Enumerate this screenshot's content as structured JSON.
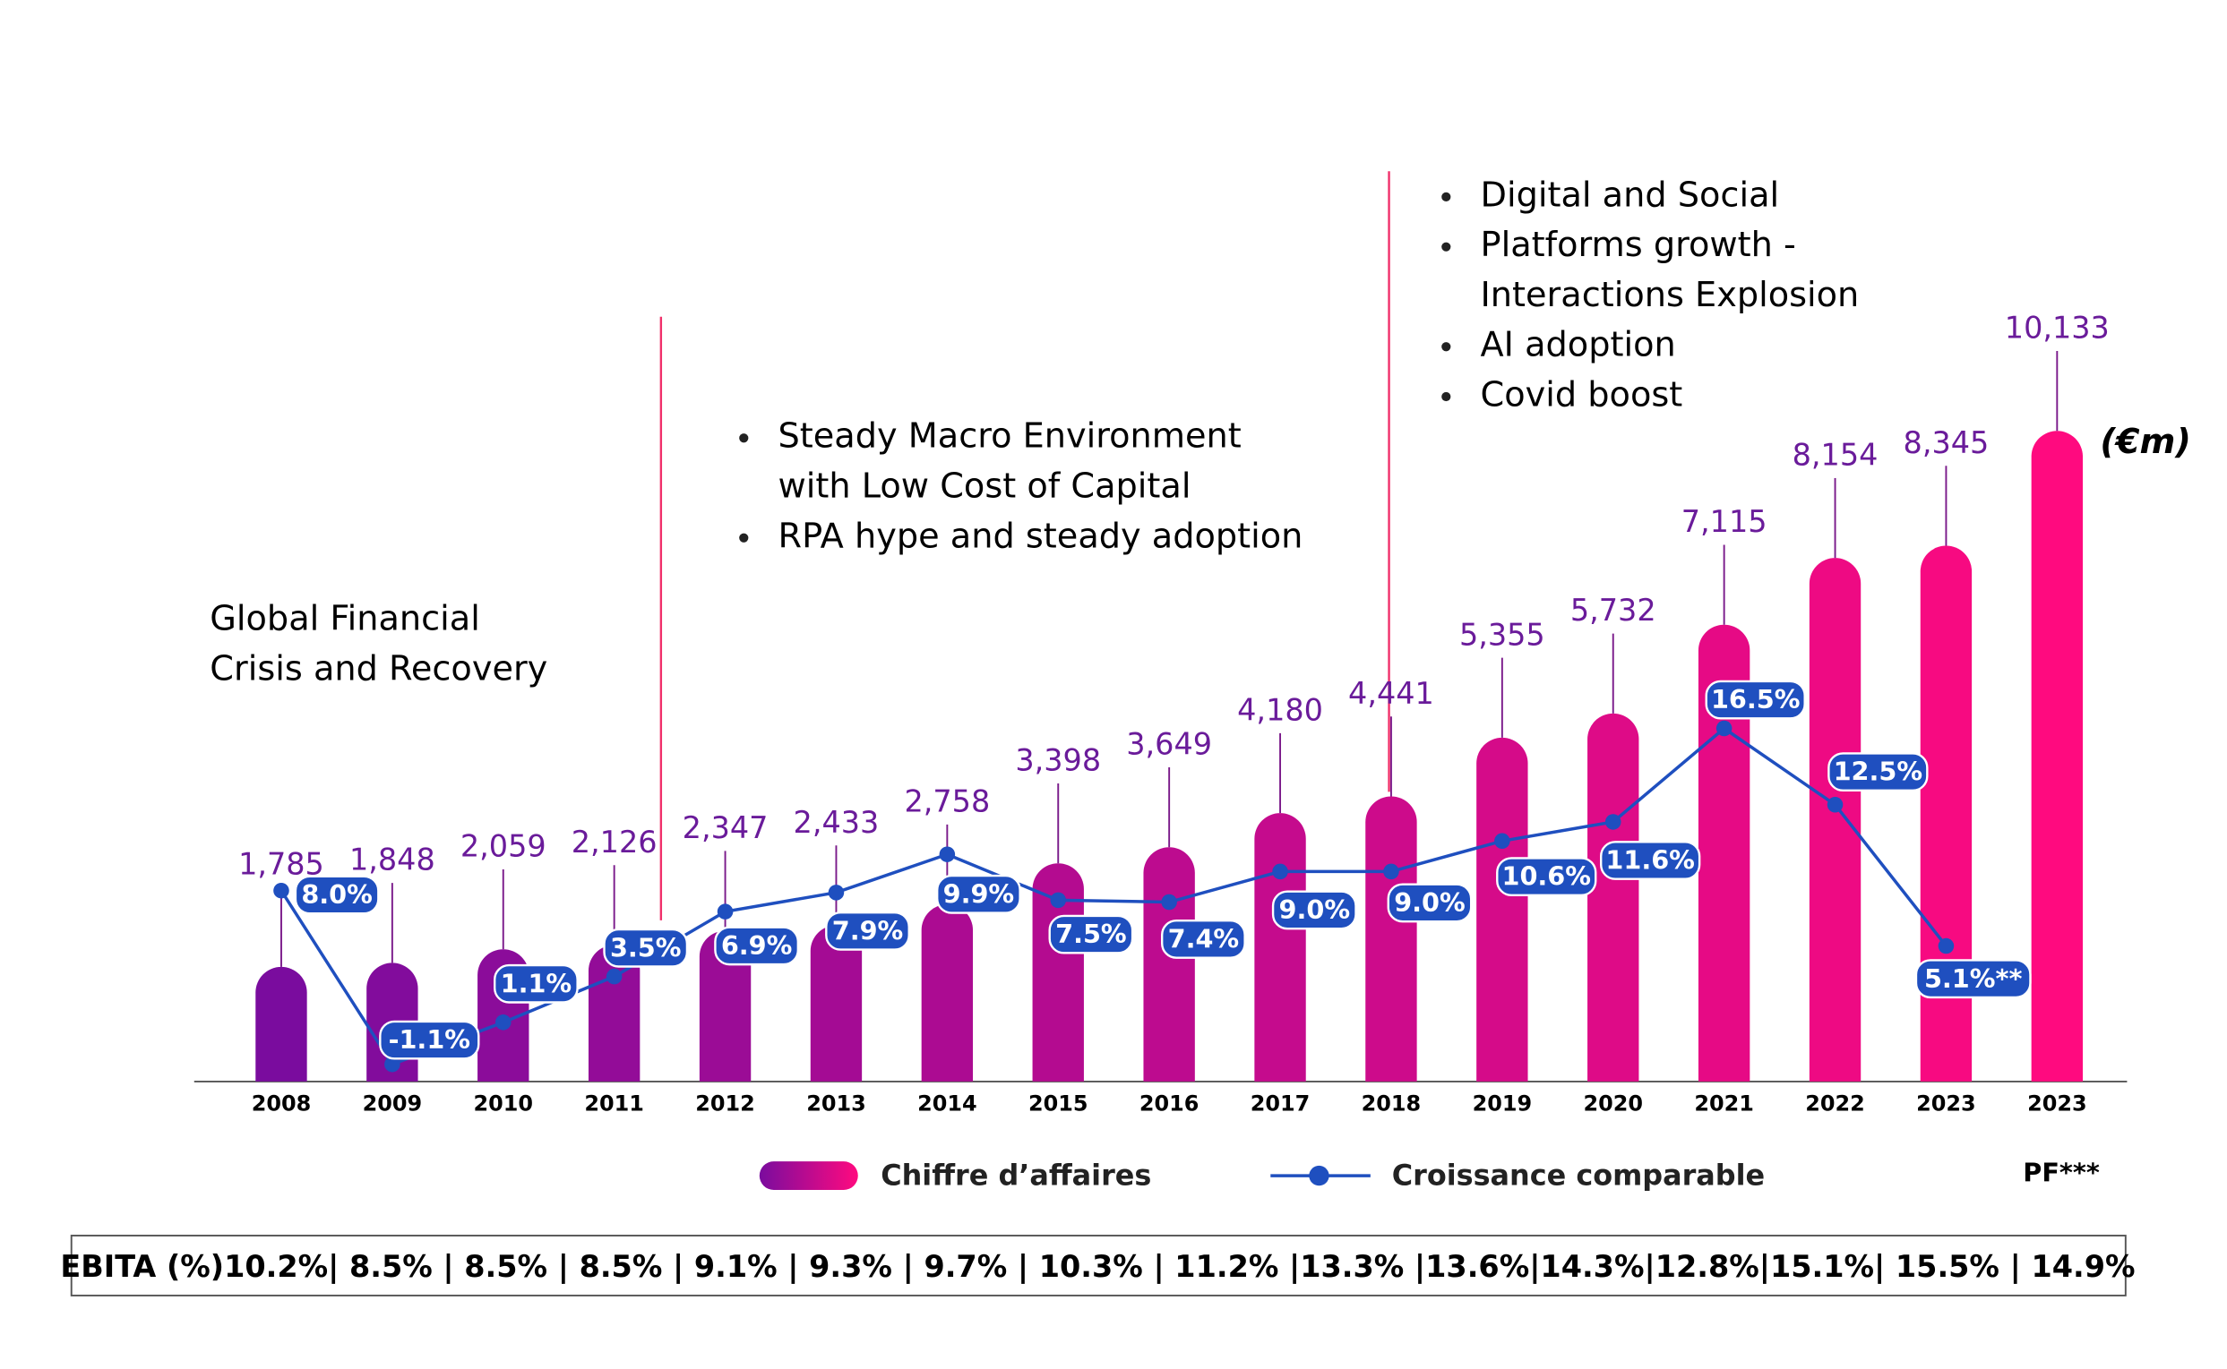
{
  "chart_data": {
    "type": "bar",
    "unit_label": "(€m)",
    "categories": [
      "2008",
      "2009",
      "2010",
      "2011",
      "2012",
      "2013",
      "2014",
      "2015",
      "2016",
      "2017",
      "2018",
      "2019",
      "2020",
      "2021",
      "2022",
      "2023",
      "2023"
    ],
    "category_note": "PF***",
    "series": [
      {
        "name": "Chiffre d’affaires",
        "type": "bar",
        "color": "#7a0c9e",
        "color_end": "#ff0a7f",
        "values": [
          1785,
          1848,
          2059,
          2126,
          2347,
          2433,
          2758,
          3398,
          3649,
          4180,
          4441,
          5355,
          5732,
          7115,
          8154,
          8345,
          10133
        ],
        "value_labels": [
          "1,785",
          "1,848",
          "2,059",
          "2,126",
          "2,347",
          "2,433",
          "2,758",
          "3,398",
          "3,649",
          "4,180",
          "4,441",
          "5,355",
          "5,732",
          "7,115",
          "8,154",
          "8,345",
          "10,133"
        ]
      },
      {
        "name": "Croissance comparable",
        "type": "line",
        "axis": "y2",
        "color": "#1f4fbf",
        "values": [
          8.0,
          -1.1,
          1.1,
          3.5,
          6.9,
          7.9,
          9.9,
          7.5,
          7.4,
          9.0,
          9.0,
          10.6,
          11.6,
          16.5,
          12.5,
          5.1,
          null
        ],
        "value_labels": [
          "8.0%",
          "-1.1%",
          "1.1%",
          "3.5%",
          "6.9%",
          "7.9%",
          "9.9%",
          "7.5%",
          "7.4%",
          "9.0%",
          "9.0%",
          "10.6%",
          "11.6%",
          "16.5%",
          "12.5%",
          "5.1%**",
          null
        ]
      }
    ],
    "ylim": [
      0,
      11000
    ],
    "y2lim": [
      -2,
      35
    ],
    "annotations": [
      {
        "lines": [
          "Global Financial",
          "Crisis and Recovery"
        ]
      },
      {
        "bullets": [
          [
            "Steady Macro Environment",
            "with Low Cost of Capital"
          ],
          [
            "RPA hype and steady adoption"
          ]
        ]
      },
      {
        "bullets": [
          [
            "Digital and Social"
          ],
          [
            "Platforms growth -",
            "Interactions Explosion"
          ],
          [
            "AI adoption"
          ],
          [
            "Covid boost"
          ]
        ]
      }
    ],
    "ebita_row": "EBITA (%)10.2%| 8.5% | 8.5% | 8.5% | 9.1% | 9.3% | 9.7% | 10.3% | 11.2% |13.3% |13.6%|14.3%|12.8%|15.1%| 15.5% | 14.9%"
  }
}
